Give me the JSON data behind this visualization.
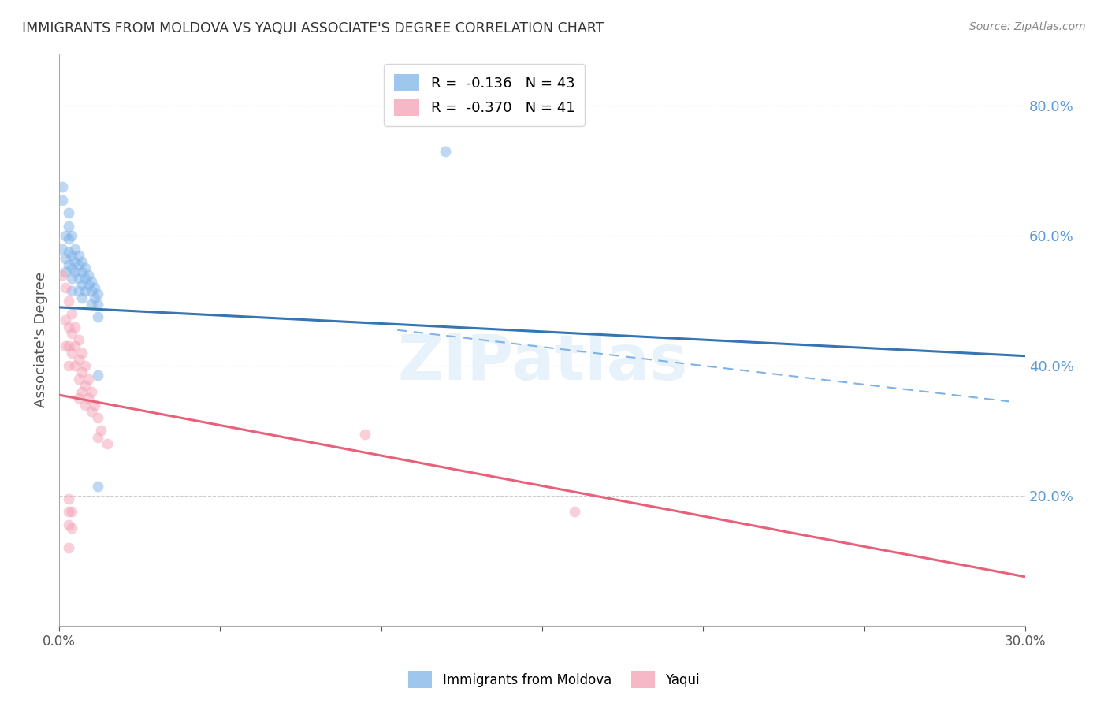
{
  "title": "IMMIGRANTS FROM MOLDOVA VS YAQUI ASSOCIATE'S DEGREE CORRELATION CHART",
  "source": "Source: ZipAtlas.com",
  "ylabel": "Associate's Degree",
  "xlim": [
    0.0,
    0.3
  ],
  "ylim": [
    0.0,
    0.88
  ],
  "right_yticks": [
    0.8,
    0.6,
    0.4,
    0.2
  ],
  "right_ytick_labels": [
    "80.0%",
    "60.0%",
    "40.0%",
    "20.0%"
  ],
  "xticks": [
    0.0,
    0.05,
    0.1,
    0.15,
    0.2,
    0.25,
    0.3
  ],
  "xtick_labels": [
    "0.0%",
    "",
    "",
    "",
    "",
    "",
    "30.0%"
  ],
  "watermark": "ZIPatlas",
  "legend_entries": [
    {
      "label": "Immigrants from Moldova",
      "R": "-0.136",
      "N": "43",
      "color": "#7fb3e8"
    },
    {
      "label": "Yaqui",
      "R": "-0.370",
      "N": "41",
      "color": "#f4a0b5"
    }
  ],
  "blue_dots": [
    [
      0.001,
      0.58
    ],
    [
      0.002,
      0.565
    ],
    [
      0.002,
      0.545
    ],
    [
      0.003,
      0.595
    ],
    [
      0.003,
      0.575
    ],
    [
      0.003,
      0.555
    ],
    [
      0.004,
      0.57
    ],
    [
      0.004,
      0.55
    ],
    [
      0.004,
      0.535
    ],
    [
      0.004,
      0.515
    ],
    [
      0.005,
      0.56
    ],
    [
      0.005,
      0.545
    ],
    [
      0.006,
      0.555
    ],
    [
      0.006,
      0.535
    ],
    [
      0.006,
      0.515
    ],
    [
      0.007,
      0.545
    ],
    [
      0.007,
      0.525
    ],
    [
      0.007,
      0.505
    ],
    [
      0.008,
      0.535
    ],
    [
      0.008,
      0.515
    ],
    [
      0.009,
      0.525
    ],
    [
      0.01,
      0.515
    ],
    [
      0.01,
      0.495
    ],
    [
      0.011,
      0.505
    ],
    [
      0.012,
      0.495
    ],
    [
      0.012,
      0.475
    ],
    [
      0.001,
      0.675
    ],
    [
      0.001,
      0.655
    ],
    [
      0.003,
      0.635
    ],
    [
      0.003,
      0.615
    ],
    [
      0.12,
      0.73
    ],
    [
      0.012,
      0.385
    ],
    [
      0.012,
      0.215
    ],
    [
      0.002,
      0.6
    ],
    [
      0.004,
      0.6
    ],
    [
      0.005,
      0.58
    ],
    [
      0.006,
      0.57
    ],
    [
      0.007,
      0.56
    ],
    [
      0.008,
      0.55
    ],
    [
      0.009,
      0.54
    ],
    [
      0.01,
      0.53
    ],
    [
      0.011,
      0.52
    ],
    [
      0.012,
      0.51
    ]
  ],
  "pink_dots": [
    [
      0.001,
      0.54
    ],
    [
      0.002,
      0.52
    ],
    [
      0.002,
      0.47
    ],
    [
      0.002,
      0.43
    ],
    [
      0.003,
      0.5
    ],
    [
      0.003,
      0.46
    ],
    [
      0.003,
      0.43
    ],
    [
      0.003,
      0.4
    ],
    [
      0.004,
      0.48
    ],
    [
      0.004,
      0.45
    ],
    [
      0.004,
      0.42
    ],
    [
      0.005,
      0.46
    ],
    [
      0.005,
      0.43
    ],
    [
      0.005,
      0.4
    ],
    [
      0.006,
      0.44
    ],
    [
      0.006,
      0.41
    ],
    [
      0.006,
      0.38
    ],
    [
      0.006,
      0.35
    ],
    [
      0.007,
      0.42
    ],
    [
      0.007,
      0.39
    ],
    [
      0.007,
      0.36
    ],
    [
      0.008,
      0.4
    ],
    [
      0.008,
      0.37
    ],
    [
      0.008,
      0.34
    ],
    [
      0.009,
      0.38
    ],
    [
      0.009,
      0.35
    ],
    [
      0.01,
      0.36
    ],
    [
      0.01,
      0.33
    ],
    [
      0.011,
      0.34
    ],
    [
      0.012,
      0.32
    ],
    [
      0.012,
      0.29
    ],
    [
      0.013,
      0.3
    ],
    [
      0.015,
      0.28
    ],
    [
      0.003,
      0.12
    ],
    [
      0.003,
      0.155
    ],
    [
      0.003,
      0.175
    ],
    [
      0.003,
      0.195
    ],
    [
      0.004,
      0.15
    ],
    [
      0.004,
      0.175
    ],
    [
      0.16,
      0.175
    ],
    [
      0.095,
      0.295
    ]
  ],
  "blue_line": {
    "x0": 0.0,
    "y0": 0.49,
    "x1": 0.3,
    "y1": 0.415
  },
  "blue_dashed_line": {
    "x0": 0.105,
    "y0": 0.455,
    "x1": 0.295,
    "y1": 0.345
  },
  "pink_line": {
    "x0": 0.0,
    "y0": 0.355,
    "x1": 0.3,
    "y1": 0.075
  },
  "background_color": "#ffffff",
  "grid_color": "#cccccc",
  "title_color": "#333333",
  "axis_color": "#aaaaaa",
  "right_axis_color": "#5b9bd5",
  "dot_size": 100,
  "dot_alpha": 0.5
}
